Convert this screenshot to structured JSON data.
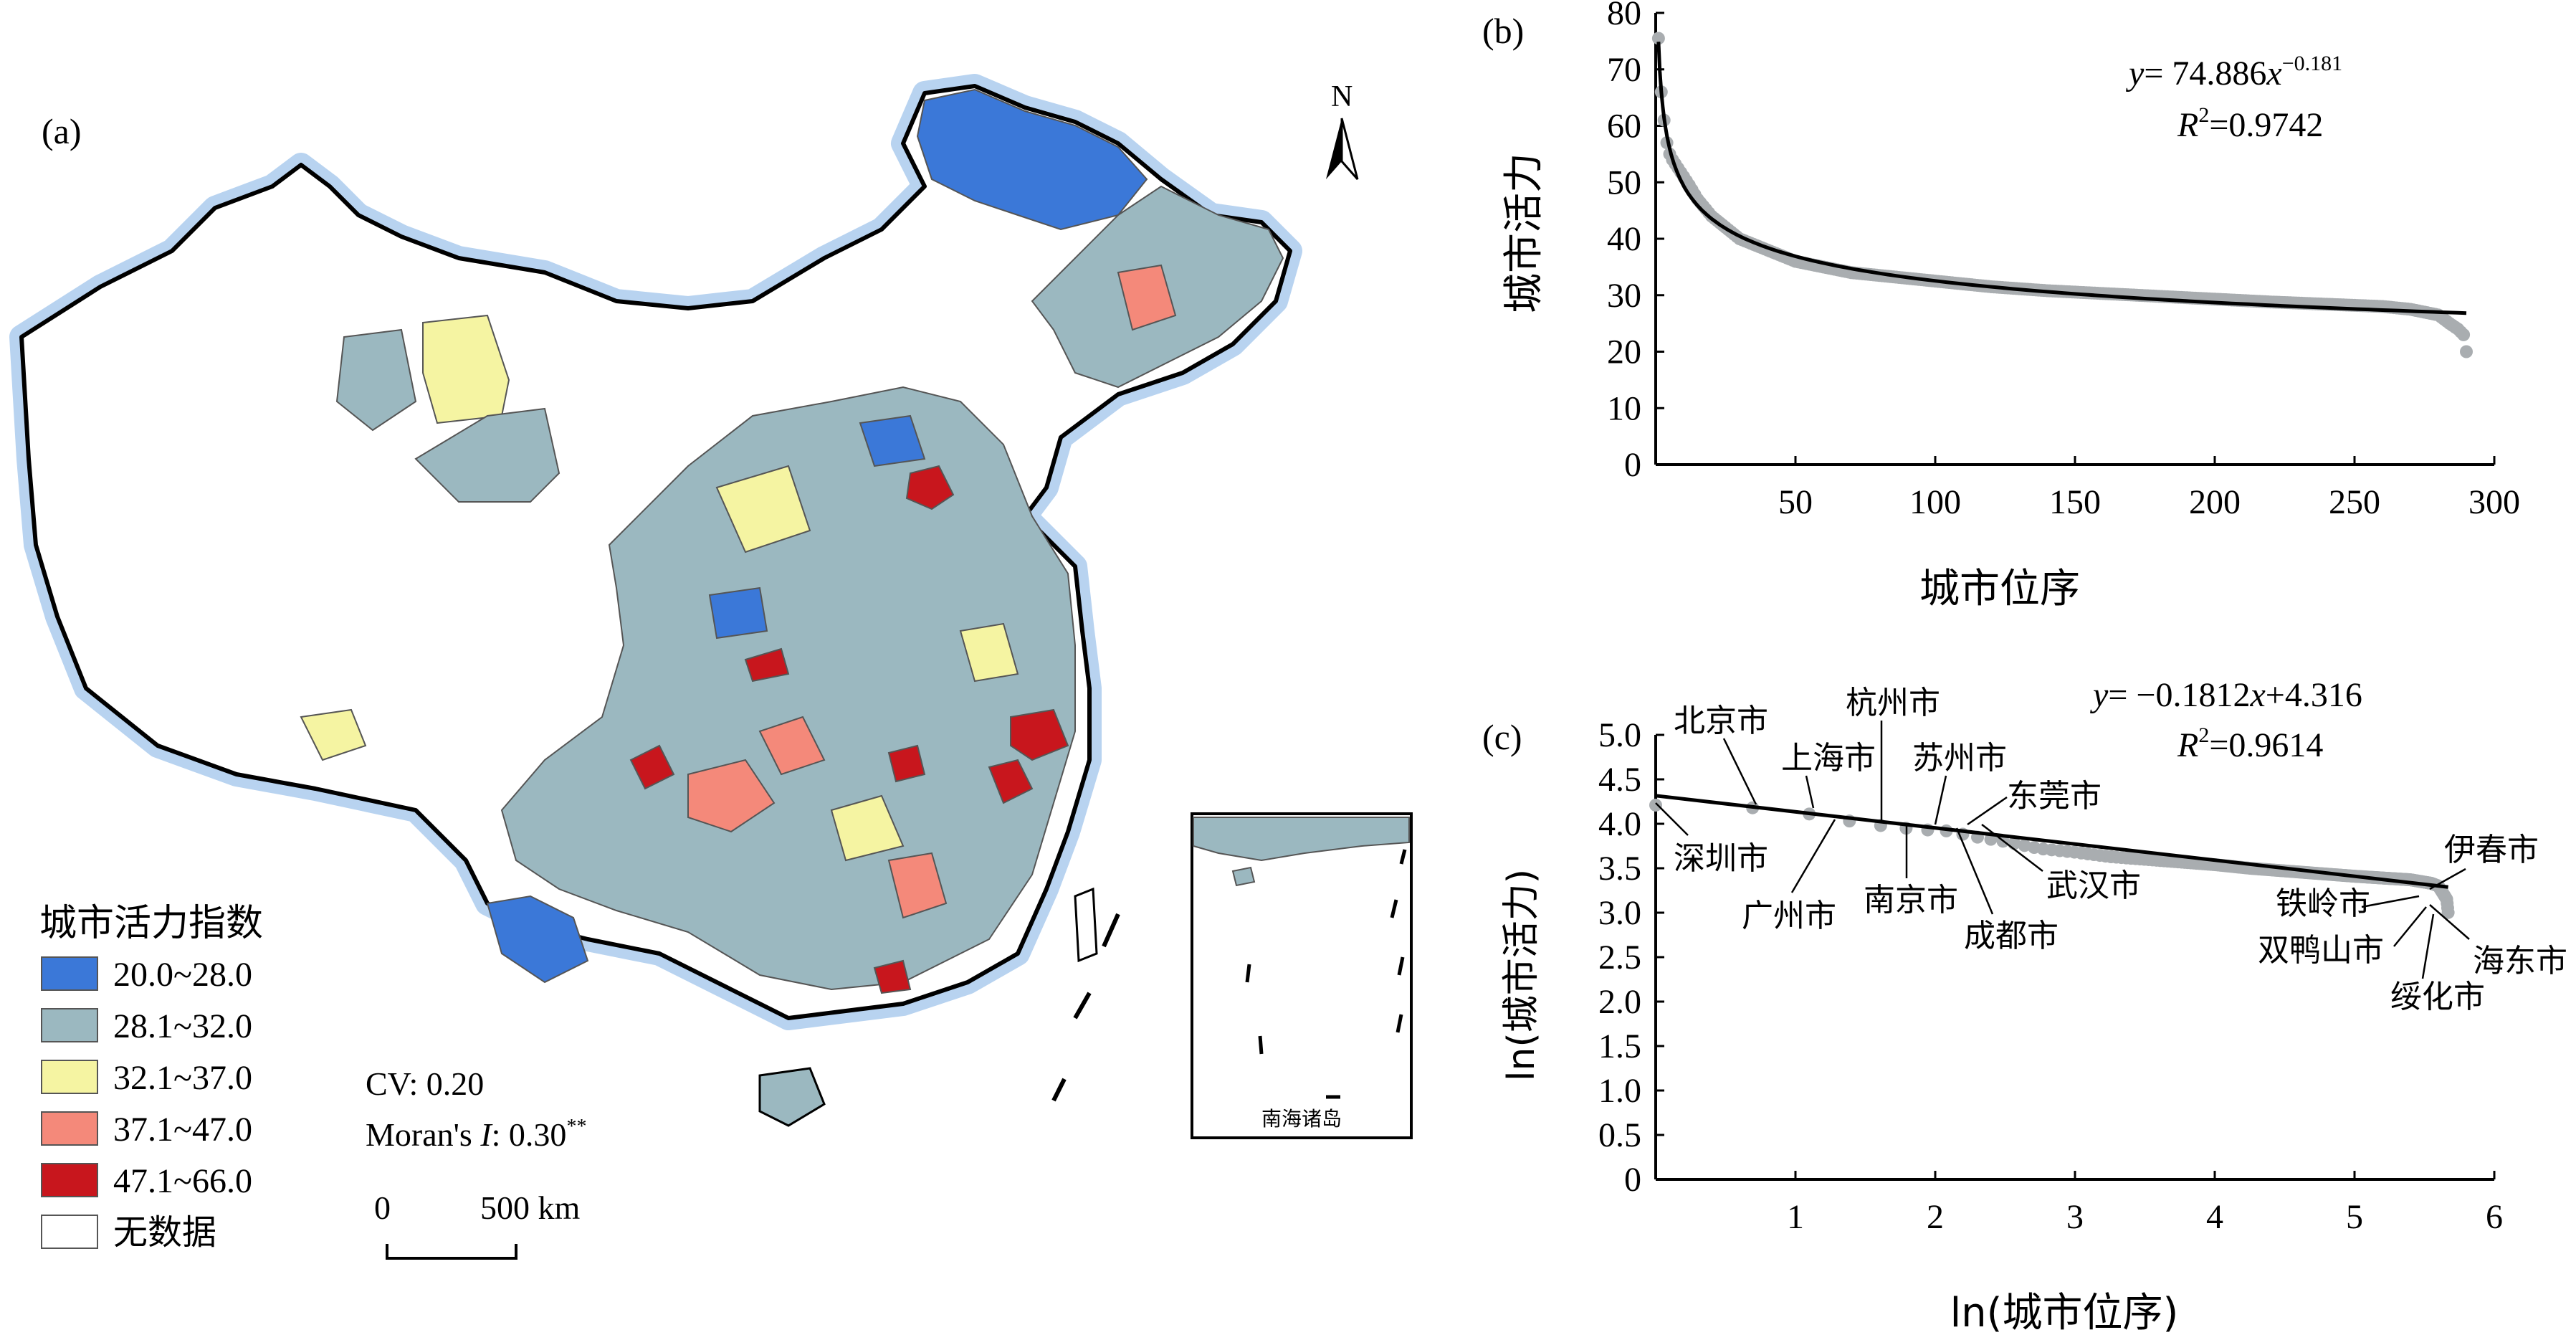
{
  "panel_a": {
    "label": "(a)",
    "north": "N",
    "legend_title": "城市活力指数",
    "legend": [
      {
        "label": "20.0~28.0",
        "color": "#3b78d8"
      },
      {
        "label": "28.1~32.0",
        "color": "#9bb8c0"
      },
      {
        "label": "32.1~37.0",
        "color": "#f5f4a2"
      },
      {
        "label": "37.1~47.0",
        "color": "#f4897a"
      },
      {
        "label": "47.1~66.0",
        "color": "#c8161d"
      },
      {
        "label": "无数据",
        "color": "#ffffff"
      }
    ],
    "cv": "CV: 0.20",
    "moran_prefix": "Moran's ",
    "moran_i": "I",
    "moran_value": ": 0.30",
    "moran_sup": "**",
    "scale_zero": "0",
    "scale_label": "500 km",
    "inset_label": "南海诸岛"
  },
  "chart_data": [
    {
      "type": "scatter",
      "panel": "(b)",
      "xlabel": "城市位序",
      "ylabel": "城市活力",
      "xlim": [
        0,
        300
      ],
      "ylim": [
        0,
        80
      ],
      "xticks": [
        50,
        100,
        150,
        200,
        250,
        300
      ],
      "yticks": [
        0,
        10,
        20,
        30,
        40,
        50,
        60,
        70,
        80
      ],
      "fit": {
        "type": "power",
        "a": 74.886,
        "b": -0.181,
        "x_range": [
          1,
          290
        ]
      },
      "equation": {
        "y": "y",
        "text": "= 74.886",
        "x": "x",
        "exp": "−0.181"
      },
      "r2": {
        "r": "R",
        "sup": "2",
        "text": "=0.9742"
      },
      "points": [
        [
          1,
          75.5
        ],
        [
          2,
          66
        ],
        [
          3,
          61
        ],
        [
          4,
          57
        ],
        [
          5,
          55
        ],
        [
          6,
          54
        ],
        [
          8,
          52.5
        ],
        [
          10,
          51
        ],
        [
          12,
          49.5
        ],
        [
          15,
          47
        ],
        [
          20,
          44
        ],
        [
          25,
          42
        ],
        [
          30,
          40
        ],
        [
          40,
          38
        ],
        [
          50,
          36
        ],
        [
          60,
          35
        ],
        [
          70,
          34
        ],
        [
          80,
          33.5
        ],
        [
          90,
          33
        ],
        [
          100,
          32.5
        ],
        [
          120,
          31.5
        ],
        [
          140,
          30.8
        ],
        [
          160,
          30.3
        ],
        [
          180,
          29.8
        ],
        [
          200,
          29.3
        ],
        [
          220,
          28.8
        ],
        [
          240,
          28.4
        ],
        [
          260,
          28
        ],
        [
          270,
          27.5
        ],
        [
          280,
          26.5
        ],
        [
          284,
          25
        ],
        [
          287,
          24
        ],
        [
          289,
          23
        ],
        [
          290,
          20
        ]
      ]
    },
    {
      "type": "scatter",
      "panel": "(c)",
      "xlabel": "ln(城市位序)",
      "ylabel": "ln(城市活力)",
      "xlim": [
        0,
        6
      ],
      "ylim": [
        0,
        5
      ],
      "xticks": [
        1,
        2,
        3,
        4,
        5,
        6
      ],
      "yticks": [
        "0",
        "0.5",
        "1.0",
        "1.5",
        "2.0",
        "2.5",
        "3.0",
        "3.5",
        "4.0",
        "4.5",
        "5.0"
      ],
      "fit": {
        "type": "linear",
        "slope": -0.1812,
        "intercept": 4.316,
        "x_range": [
          0,
          5.67
        ]
      },
      "equation": {
        "y": "y",
        "text": "= −0.1812",
        "x": "x",
        "tail": "+4.316"
      },
      "r2": {
        "r": "R",
        "sup": "2",
        "text": "=0.9614"
      },
      "points": [
        [
          0,
          4.21
        ],
        [
          0.69,
          4.18
        ],
        [
          1.1,
          4.11
        ],
        [
          1.39,
          4.03
        ],
        [
          1.61,
          3.98
        ],
        [
          1.79,
          3.95
        ],
        [
          1.95,
          3.93
        ],
        [
          2.08,
          3.92
        ],
        [
          2.3,
          3.85
        ],
        [
          2.5,
          3.8
        ],
        [
          2.75,
          3.72
        ],
        [
          3,
          3.68
        ],
        [
          3.25,
          3.63
        ],
        [
          3.5,
          3.6
        ],
        [
          3.75,
          3.57
        ],
        [
          4,
          3.54
        ],
        [
          4.25,
          3.5
        ],
        [
          4.5,
          3.47
        ],
        [
          4.75,
          3.44
        ],
        [
          5,
          3.41
        ],
        [
          5.2,
          3.39
        ],
        [
          5.4,
          3.37
        ],
        [
          5.55,
          3.33
        ],
        [
          5.6,
          3.3
        ],
        [
          5.64,
          3.2
        ],
        [
          5.66,
          3.15
        ],
        [
          5.67,
          3.0
        ]
      ],
      "labels": [
        "北京市",
        "上海市",
        "杭州市",
        "苏州市",
        "东莞市",
        "深圳市",
        "广州市",
        "南京市",
        "成都市",
        "武汉市",
        "伊春市",
        "铁岭市",
        "双鸭山市",
        "海东市",
        "绥化市"
      ]
    }
  ]
}
